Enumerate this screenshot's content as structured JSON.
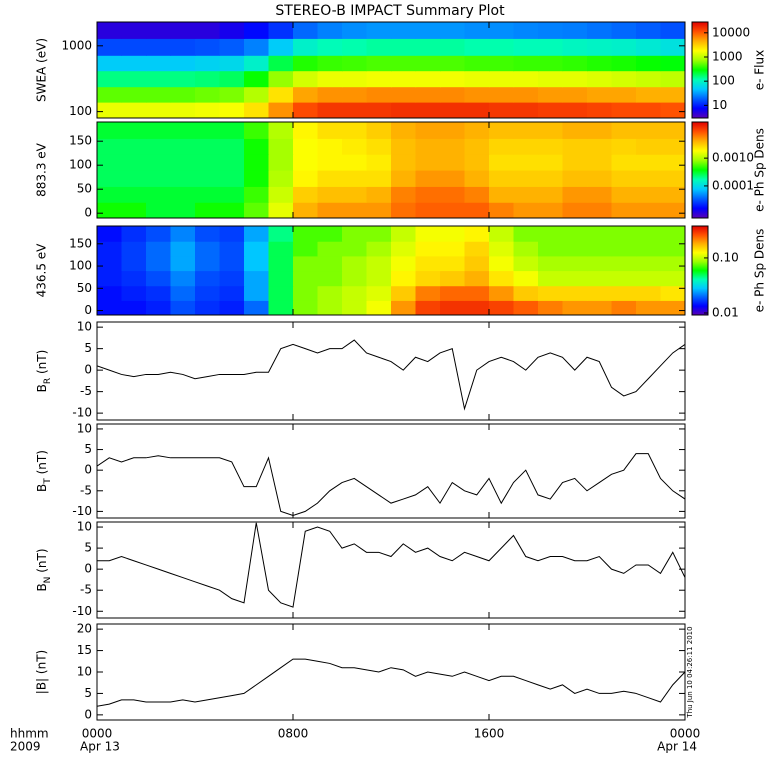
{
  "title": "STEREO-B IMPACT Summary Plot",
  "timestamp": "Thu Jun 10 04:26:11 2010",
  "x_axis": {
    "xlim": [
      0,
      24
    ],
    "xticks": [
      {
        "value": 0,
        "label": "0000"
      },
      {
        "value": 8,
        "label": "0800"
      },
      {
        "value": 16,
        "label": "1600"
      },
      {
        "value": 24,
        "label": "0000"
      }
    ],
    "date_labels": [
      "Apr 13",
      "Apr 14"
    ],
    "corner_labels": [
      "hhmm",
      "2009"
    ]
  },
  "chart_data": [
    {
      "type": "heatmap",
      "ylabel": "SWEA (eV)",
      "ylog": true,
      "ylim": [
        80,
        2300
      ],
      "yticks": [
        100,
        1000
      ],
      "x": [
        0,
        1,
        2,
        3,
        4,
        5,
        6,
        7,
        8,
        9,
        10,
        11,
        12,
        13,
        14,
        15,
        16,
        17,
        18,
        19,
        20,
        21,
        22,
        23,
        24
      ],
      "y_edges": [
        80,
        140,
        240,
        420,
        720,
        1300,
        2300
      ],
      "z": [
        [
          1500,
          1500,
          1500,
          1500,
          1600,
          1700,
          2500,
          6000,
          12000,
          15000,
          15000,
          15000,
          16000,
          16000,
          16000,
          16000,
          15000,
          15000,
          14000,
          14000,
          13000,
          12000,
          12000,
          11000
        ],
        [
          500,
          500,
          500,
          500,
          550,
          600,
          900,
          2500,
          5000,
          6000,
          6000,
          6500,
          6500,
          6500,
          6500,
          6000,
          6000,
          6000,
          5500,
          5500,
          5000,
          5000,
          4500,
          4500
        ],
        [
          150,
          150,
          150,
          150,
          160,
          180,
          300,
          700,
          1200,
          1500,
          1500,
          1600,
          1600,
          1600,
          1600,
          1500,
          1500,
          1500,
          1400,
          1400,
          1300,
          1200,
          1100,
          1000
        ],
        [
          50,
          50,
          50,
          50,
          55,
          60,
          90,
          200,
          350,
          400,
          420,
          450,
          450,
          450,
          450,
          420,
          420,
          400,
          400,
          380,
          350,
          330,
          300,
          280
        ],
        [
          15,
          15,
          15,
          15,
          16,
          18,
          25,
          50,
          90,
          110,
          120,
          130,
          130,
          130,
          130,
          120,
          120,
          110,
          110,
          100,
          95,
          90,
          80,
          70
        ],
        [
          5,
          5,
          5,
          5,
          5,
          6,
          8,
          12,
          20,
          25,
          28,
          30,
          30,
          30,
          30,
          28,
          28,
          26,
          25,
          24,
          22,
          20,
          18,
          16
        ]
      ],
      "colorscale": [
        "#5a00b4",
        "#0000ff",
        "#0060ff",
        "#00c8ff",
        "#00ffb4",
        "#00ff00",
        "#9cff00",
        "#ffff00",
        "#ffb000",
        "#ff5000",
        "#e00000"
      ],
      "colorbar": {
        "label": "e- Flux",
        "clim": [
          3,
          28000
        ],
        "ticks": [
          10,
          100,
          1000,
          10000
        ]
      }
    },
    {
      "type": "heatmap",
      "ylabel": "883.3 eV",
      "ylim": [
        -10,
        190
      ],
      "yticks": [
        0,
        50,
        100,
        150
      ],
      "x": [
        0,
        1,
        2,
        3,
        4,
        5,
        6,
        7,
        8,
        9,
        10,
        11,
        12,
        13,
        14,
        15,
        16,
        17,
        18,
        19,
        20,
        21,
        22,
        23,
        24
      ],
      "y_edges": [
        -10,
        23,
        56,
        90,
        123,
        156,
        190
      ],
      "z": [
        [
          0.0004,
          0.0004,
          0.0003,
          0.0003,
          0.0004,
          0.0004,
          0.0006,
          0.0015,
          0.004,
          0.005,
          0.005,
          0.005,
          0.007,
          0.008,
          0.008,
          0.008,
          0.006,
          0.005,
          0.005,
          0.006,
          0.006,
          0.005,
          0.005,
          0.005
        ],
        [
          0.0003,
          0.0003,
          0.0003,
          0.0003,
          0.0003,
          0.0003,
          0.0005,
          0.0012,
          0.003,
          0.0035,
          0.0035,
          0.004,
          0.006,
          0.007,
          0.007,
          0.006,
          0.004,
          0.004,
          0.004,
          0.005,
          0.005,
          0.004,
          0.004,
          0.004
        ],
        [
          0.00025,
          0.00025,
          0.00025,
          0.00025,
          0.00025,
          0.00025,
          0.0004,
          0.001,
          0.002,
          0.0025,
          0.0025,
          0.0025,
          0.004,
          0.005,
          0.005,
          0.004,
          0.003,
          0.003,
          0.003,
          0.0035,
          0.0035,
          0.003,
          0.003,
          0.003
        ],
        [
          0.00025,
          0.00025,
          0.00025,
          0.00025,
          0.00025,
          0.00025,
          0.0004,
          0.0009,
          0.0018,
          0.002,
          0.002,
          0.0022,
          0.0035,
          0.004,
          0.004,
          0.0035,
          0.0025,
          0.0025,
          0.0025,
          0.003,
          0.003,
          0.0025,
          0.0025,
          0.0025
        ],
        [
          0.00025,
          0.00025,
          0.00025,
          0.00025,
          0.00025,
          0.00025,
          0.0004,
          0.0009,
          0.0018,
          0.002,
          0.0022,
          0.0025,
          0.0035,
          0.004,
          0.004,
          0.0035,
          0.0028,
          0.0028,
          0.0028,
          0.003,
          0.003,
          0.0028,
          0.003,
          0.003
        ],
        [
          0.0003,
          0.0003,
          0.0003,
          0.0003,
          0.0003,
          0.0003,
          0.0005,
          0.001,
          0.002,
          0.0025,
          0.0025,
          0.003,
          0.004,
          0.0045,
          0.0045,
          0.004,
          0.0035,
          0.0035,
          0.0035,
          0.004,
          0.004,
          0.0035,
          0.0035,
          0.0035
        ]
      ],
      "colorscale": [
        "#5a00b4",
        "#0000ff",
        "#0060ff",
        "#00c8ff",
        "#00ffb4",
        "#00ff00",
        "#9cff00",
        "#ffff00",
        "#ffb000",
        "#ff5000",
        "#e00000"
      ],
      "colorbar": {
        "label": "e- Ph Sp Dens",
        "clim": [
          7e-06,
          0.02
        ],
        "ticks": [
          0.0001,
          {
            "value": 0.001,
            "label": "0.0010"
          }
        ]
      }
    },
    {
      "type": "heatmap",
      "ylabel": "436.5 eV",
      "ylim": [
        -10,
        190
      ],
      "yticks": [
        0,
        50,
        100,
        150
      ],
      "x": [
        0,
        1,
        2,
        3,
        4,
        5,
        6,
        7,
        8,
        9,
        10,
        11,
        12,
        13,
        14,
        15,
        16,
        17,
        18,
        19,
        20,
        21,
        22,
        23,
        24
      ],
      "y_edges": [
        -10,
        23,
        56,
        90,
        123,
        156,
        190
      ],
      "z": [
        [
          0.014,
          0.014,
          0.015,
          0.018,
          0.016,
          0.015,
          0.02,
          0.05,
          0.08,
          0.09,
          0.1,
          0.12,
          0.2,
          0.28,
          0.3,
          0.3,
          0.28,
          0.25,
          0.22,
          0.2,
          0.2,
          0.22,
          0.2,
          0.2
        ],
        [
          0.014,
          0.015,
          0.016,
          0.02,
          0.017,
          0.016,
          0.025,
          0.05,
          0.08,
          0.09,
          0.1,
          0.11,
          0.16,
          0.22,
          0.24,
          0.24,
          0.2,
          0.16,
          0.15,
          0.15,
          0.15,
          0.15,
          0.15,
          0.14
        ],
        [
          0.015,
          0.016,
          0.018,
          0.022,
          0.018,
          0.017,
          0.025,
          0.05,
          0.08,
          0.08,
          0.09,
          0.1,
          0.13,
          0.15,
          0.16,
          0.18,
          0.14,
          0.12,
          0.1,
          0.1,
          0.1,
          0.1,
          0.1,
          0.1
        ],
        [
          0.015,
          0.017,
          0.02,
          0.025,
          0.02,
          0.018,
          0.028,
          0.05,
          0.08,
          0.08,
          0.09,
          0.1,
          0.12,
          0.14,
          0.14,
          0.16,
          0.12,
          0.1,
          0.09,
          0.09,
          0.09,
          0.09,
          0.09,
          0.09
        ],
        [
          0.015,
          0.017,
          0.02,
          0.025,
          0.02,
          0.018,
          0.028,
          0.05,
          0.07,
          0.08,
          0.08,
          0.09,
          0.11,
          0.13,
          0.13,
          0.15,
          0.11,
          0.09,
          0.08,
          0.08,
          0.08,
          0.08,
          0.08,
          0.08
        ],
        [
          0.014,
          0.016,
          0.018,
          0.022,
          0.018,
          0.017,
          0.025,
          0.045,
          0.07,
          0.07,
          0.08,
          0.08,
          0.1,
          0.12,
          0.12,
          0.13,
          0.1,
          0.08,
          0.08,
          0.08,
          0.08,
          0.08,
          0.08,
          0.08
        ]
      ],
      "colorscale": [
        "#5a00b4",
        "#0000ff",
        "#0060ff",
        "#00c8ff",
        "#00ffb4",
        "#00ff00",
        "#9cff00",
        "#ffff00",
        "#ffb000",
        "#ff5000",
        "#e00000"
      ],
      "colorbar": {
        "label": "e- Ph Sp Dens",
        "clim": [
          0.0092,
          0.38
        ],
        "ticks": [
          0.01,
          {
            "value": 0.1,
            "label": "0.10"
          }
        ]
      }
    },
    {
      "type": "line",
      "ylabel": {
        "base": "B",
        "sub": "R",
        "unit": " (nT)"
      },
      "ylim": [
        -11.6,
        11.2
      ],
      "yticks": [
        -10,
        -5,
        0,
        5,
        10
      ],
      "color": "#000000",
      "x": [
        0,
        0.5,
        1,
        1.5,
        2,
        2.5,
        3,
        3.5,
        4,
        4.5,
        5,
        5.5,
        6,
        6.5,
        7,
        7.5,
        8,
        8.5,
        9,
        9.5,
        10,
        10.5,
        11,
        11.5,
        12,
        12.5,
        13,
        13.5,
        14,
        14.5,
        15,
        15.5,
        16,
        16.5,
        17,
        17.5,
        18,
        18.5,
        19,
        19.5,
        20,
        20.5,
        21,
        21.5,
        22,
        22.5,
        23,
        23.5,
        24
      ],
      "values": [
        1,
        0,
        -1,
        -1.5,
        -1,
        -1,
        -0.5,
        -1,
        -2,
        -1.5,
        -1,
        -1,
        -1,
        -0.5,
        -0.5,
        5,
        6,
        5,
        4,
        5,
        5,
        7,
        4,
        3,
        2,
        0,
        3,
        2,
        4,
        5,
        -9,
        0,
        2,
        3,
        2,
        0,
        3,
        4,
        3,
        0,
        3,
        2,
        -4,
        -6,
        -5,
        -2,
        1,
        4,
        6
      ]
    },
    {
      "type": "line",
      "ylabel": {
        "base": "B",
        "sub": "T",
        "unit": " (nT)"
      },
      "ylim": [
        -11.6,
        11.2
      ],
      "yticks": [
        -10,
        -5,
        0,
        5,
        10
      ],
      "color": "#000000",
      "x": [
        0,
        0.5,
        1,
        1.5,
        2,
        2.5,
        3,
        3.5,
        4,
        4.5,
        5,
        5.5,
        6,
        6.5,
        7,
        7.5,
        8,
        8.5,
        9,
        9.5,
        10,
        10.5,
        11,
        11.5,
        12,
        12.5,
        13,
        13.5,
        14,
        14.5,
        15,
        15.5,
        16,
        16.5,
        17,
        17.5,
        18,
        18.5,
        19,
        19.5,
        20,
        20.5,
        21,
        21.5,
        22,
        22.5,
        23,
        23.5,
        24
      ],
      "values": [
        1,
        3,
        2,
        3,
        3,
        3.5,
        3,
        3,
        3,
        3,
        3,
        2,
        -4,
        -4,
        3,
        -10,
        -11,
        -10,
        -8,
        -5,
        -3,
        -2,
        -4,
        -6,
        -8,
        -7,
        -6,
        -4,
        -8,
        -3,
        -5,
        -6,
        -2,
        -8,
        -3,
        0,
        -6,
        -7,
        -3,
        -2,
        -5,
        -3,
        -1,
        0,
        4,
        4,
        -2,
        -5,
        -7
      ]
    },
    {
      "type": "line",
      "ylabel": {
        "base": "B",
        "sub": "N",
        "unit": " (nT)"
      },
      "ylim": [
        -11.6,
        11.2
      ],
      "yticks": [
        -10,
        -5,
        0,
        5,
        10
      ],
      "color": "#000000",
      "x": [
        0,
        0.5,
        1,
        1.5,
        2,
        2.5,
        3,
        3.5,
        4,
        4.5,
        5,
        5.5,
        6,
        6.5,
        7,
        7.5,
        8,
        8.5,
        9,
        9.5,
        10,
        10.5,
        11,
        11.5,
        12,
        12.5,
        13,
        13.5,
        14,
        14.5,
        15,
        15.5,
        16,
        16.5,
        17,
        17.5,
        18,
        18.5,
        19,
        19.5,
        20,
        20.5,
        21,
        21.5,
        22,
        22.5,
        23,
        23.5,
        24
      ],
      "values": [
        2,
        2,
        3,
        2,
        1,
        0,
        -1,
        -2,
        -3,
        -4,
        -5,
        -7,
        -8,
        11,
        -5,
        -8,
        -9,
        9,
        10,
        9,
        5,
        6,
        4,
        4,
        3,
        6,
        4,
        5,
        3,
        2,
        4,
        3,
        2,
        5,
        8,
        3,
        2,
        3,
        3,
        2,
        2,
        3,
        0,
        -1,
        1,
        1,
        -1,
        4,
        -2
      ]
    },
    {
      "type": "line",
      "ylabel": "|B| (nT)",
      "ylim": [
        -1.2,
        21.2
      ],
      "yticks": [
        0,
        5,
        10,
        15,
        20
      ],
      "color": "#000000",
      "x": [
        0,
        0.5,
        1,
        1.5,
        2,
        2.5,
        3,
        3.5,
        4,
        4.5,
        5,
        5.5,
        6,
        6.5,
        7,
        7.5,
        8,
        8.5,
        9,
        9.5,
        10,
        10.5,
        11,
        11.5,
        12,
        12.5,
        13,
        13.5,
        14,
        14.5,
        15,
        15.5,
        16,
        16.5,
        17,
        17.5,
        18,
        18.5,
        19,
        19.5,
        20,
        20.5,
        21,
        21.5,
        22,
        22.5,
        23,
        23.5,
        24
      ],
      "values": [
        2,
        2.5,
        3.5,
        3.5,
        3,
        3,
        3,
        3.5,
        3,
        3.5,
        4,
        4.5,
        5,
        7,
        9,
        11,
        13,
        13,
        12.5,
        12,
        11,
        11,
        10.5,
        10,
        11,
        10.5,
        9,
        10,
        9.5,
        9,
        10,
        9,
        8,
        9,
        9,
        8,
        7,
        6,
        7,
        5,
        6,
        5,
        5,
        5.5,
        5,
        4,
        3,
        7,
        10
      ]
    }
  ]
}
